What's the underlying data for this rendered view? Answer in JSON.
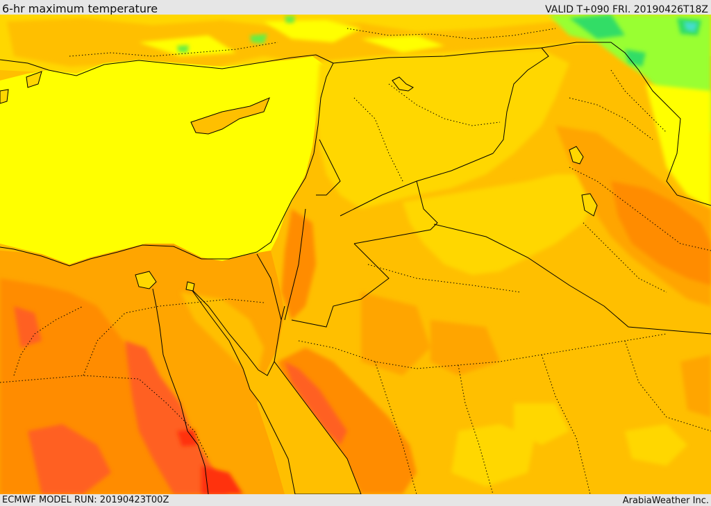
{
  "header": {
    "product_title": "6-hr maximum temperature",
    "valid_time": "VALID T+090 FRI. 20190426T18Z"
  },
  "footer": {
    "model_run": "ECMWF MODEL RUN: 20190423T00Z",
    "provider": "ArabiaWeather Inc."
  },
  "palette": {
    "cool_green": "#33dd66",
    "light_green": "#99ff33",
    "sea_yellow": "#ffff00",
    "warm_yellow": "#ffd700",
    "gold": "#ffbf00",
    "orange": "#ffa500",
    "dark_orange": "#ff8c00",
    "red_orange": "#ff6020",
    "red": "#ff3010",
    "cyan_cold": "#44ddcc",
    "borders": "#000000"
  }
}
